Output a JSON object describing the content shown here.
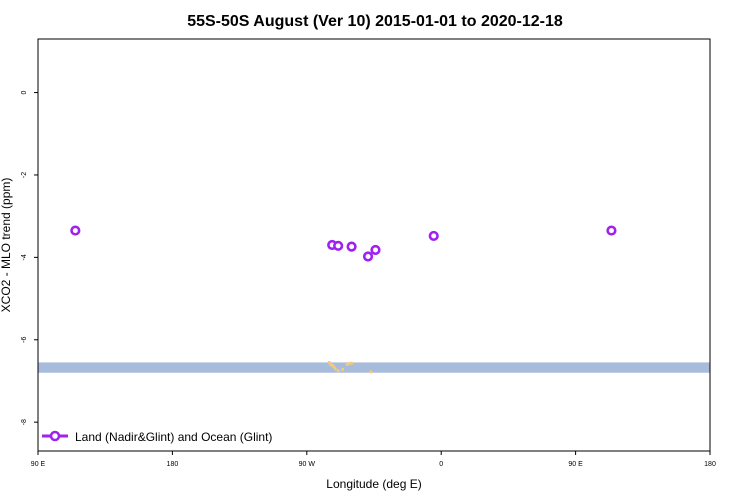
{
  "chart_data": {
    "type": "scatter",
    "title": "55S-50S August (Ver 10)   2015-01-01 to 2020-12-18",
    "xlabel": "Longitude (deg E)",
    "ylabel": "XCO2 - MLO trend (ppm)",
    "xlim": [
      90,
      540
    ],
    "ylim": [
      -8.7,
      1.3
    ],
    "x_ticks": [
      {
        "value": 90,
        "label": "90 E"
      },
      {
        "value": 180,
        "label": "180"
      },
      {
        "value": 270,
        "label": "90 W"
      },
      {
        "value": 360,
        "label": "0"
      },
      {
        "value": 450,
        "label": "90 E"
      },
      {
        "value": 540,
        "label": "180"
      }
    ],
    "y_ticks": [
      {
        "value": 0,
        "label": "0"
      },
      {
        "value": -2,
        "label": "-2"
      },
      {
        "value": -4,
        "label": "-4"
      },
      {
        "value": -6,
        "label": "-6"
      },
      {
        "value": -8,
        "label": "-8"
      }
    ],
    "series": [
      {
        "name": "Land (Nadir&Glint) and Ocean (Glint)",
        "color": "#a020f0",
        "marker": "open-circle",
        "x": [
          115,
          287,
          291,
          300,
          311,
          316,
          355,
          474
        ],
        "y": [
          -3.35,
          -3.7,
          -3.72,
          -3.74,
          -3.98,
          -3.82,
          -3.48,
          -3.35
        ]
      }
    ],
    "band": {
      "color": "#a7bcdb",
      "y_top": -6.55,
      "y_bottom": -6.8,
      "markers_color": "#f3c97a",
      "markers_x": [
        285,
        286,
        287,
        288,
        289,
        291,
        294,
        297,
        298,
        300,
        313
      ],
      "markers_y": [
        -6.55,
        -6.6,
        -6.62,
        -6.65,
        -6.7,
        -6.75,
        -6.72,
        -6.6,
        -6.58,
        -6.57,
        -6.78
      ]
    },
    "legend_position": "bottom-left",
    "grid": false
  }
}
